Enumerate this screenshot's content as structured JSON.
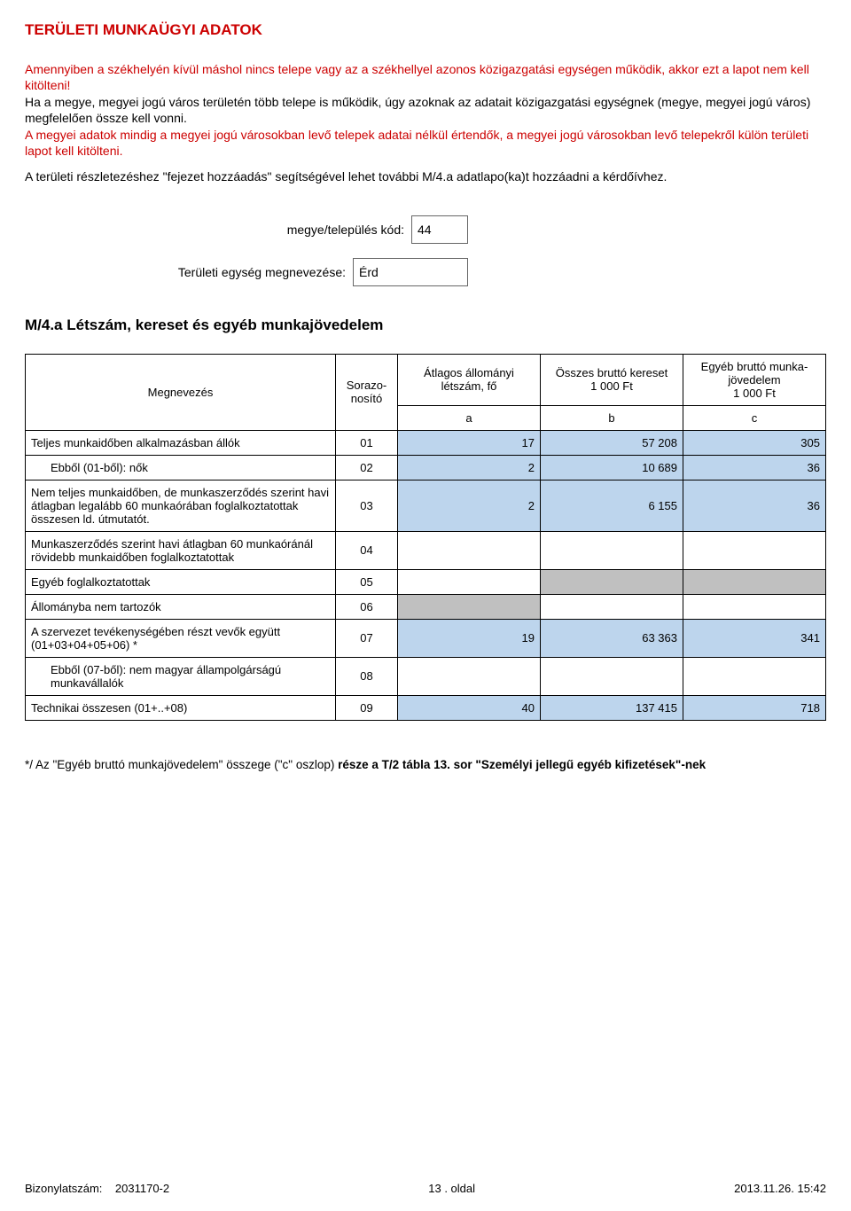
{
  "title": "TERÜLETI MUNKAÜGYI ADATOK",
  "para1": "Amennyiben a székhelyén kívül máshol nincs telepe vagy az a székhellyel azonos közigazgatási egységen működik, akkor ezt a lapot nem kell kitölteni!",
  "para2": "Ha a megye, megyei jogú város területén több telepe is működik, úgy azoknak az adatait közigazgatási egységnek (megye, megyei jogú város) megfelelően össze kell vonni.",
  "para3": "A megyei adatok mindig a megyei jogú városokban levő telepek adatai nélkül értendők, a megyei jogú városokban levő telepekről külön területi lapot kell kitölteni.",
  "para4": "A területi részletezéshez \"fejezet hozzáadás\" segítségével lehet további M/4.a adatlapo(ka)t hozzáadni a kérdőívhez.",
  "form": {
    "kod_label": "megye/település kód:",
    "kod_value": "44",
    "terulet_label": "Területi egység megnevezése:",
    "terulet_value": "Érd"
  },
  "section_title": "M/4.a  Létszám, kereset és egyéb munkajövedelem",
  "headers": {
    "megn": "Megnevezés",
    "sor": "Sorazo-nosító",
    "col_a": "Átlagos állományi létszám, fő",
    "col_b": "Összes bruttó kereset\n1 000 Ft",
    "col_c": "Egyéb bruttó munka-jövedelem\n1 000 Ft",
    "a": "a",
    "b": "b",
    "c": "c"
  },
  "rows": [
    {
      "name": "Teljes munkaidőben alkalmazásban állók",
      "id": "01",
      "a": "17",
      "b": "57 208",
      "c": "305",
      "shade": true
    },
    {
      "name": "Ebből (01-ből): nők",
      "id": "02",
      "a": "2",
      "b": "10 689",
      "c": "36",
      "shade": true,
      "indent": true
    },
    {
      "name": "Nem teljes munkaidőben, de munkaszerződés szerint havi átlagban legalább 60 munkaórában foglalkoztatottak összesen ld. útmutatót.",
      "id": "03",
      "a": "2",
      "b": "6 155",
      "c": "36",
      "shade": true
    },
    {
      "name": "Munkaszerződés szerint havi átlagban 60 munkaóránál rövidebb munkaidőben foglalkoztatottak",
      "id": "04",
      "a": "",
      "b": "",
      "c": ""
    },
    {
      "name": "Egyéb foglalkoztatottak",
      "id": "05",
      "a": "",
      "b": "gray",
      "c": "gray"
    },
    {
      "name": "Állományba nem tartozók",
      "id": "06",
      "a": "gray",
      "b": "",
      "c": ""
    },
    {
      "name": "A szervezet tevékenységében részt vevők együtt (01+03+04+05+06) *",
      "id": "07",
      "a": "19",
      "b": "63 363",
      "c": "341",
      "shade": true
    },
    {
      "name": "Ebből (07-ből): nem magyar állampolgárságú munkavállalók",
      "id": "08",
      "a": "",
      "b": "",
      "c": "",
      "indent": true
    },
    {
      "name": "Technikai összesen (01+..+08)",
      "id": "09",
      "a": "40",
      "b": "137 415",
      "c": "718",
      "shade": true
    }
  ],
  "footnote_prefix": "*/ Az \"Egyéb bruttó munkajövedelem\" összege (\"c\" oszlop) ",
  "footnote_bold": "része a T/2 tábla 13. sor \"Személyi jellegű egyéb kifizetések\"-nek",
  "footer": {
    "left_label": "Bizonylatszám:",
    "left_value": "2031170-2",
    "center": "13 . oldal",
    "right": "2013.11.26.  15:42"
  }
}
